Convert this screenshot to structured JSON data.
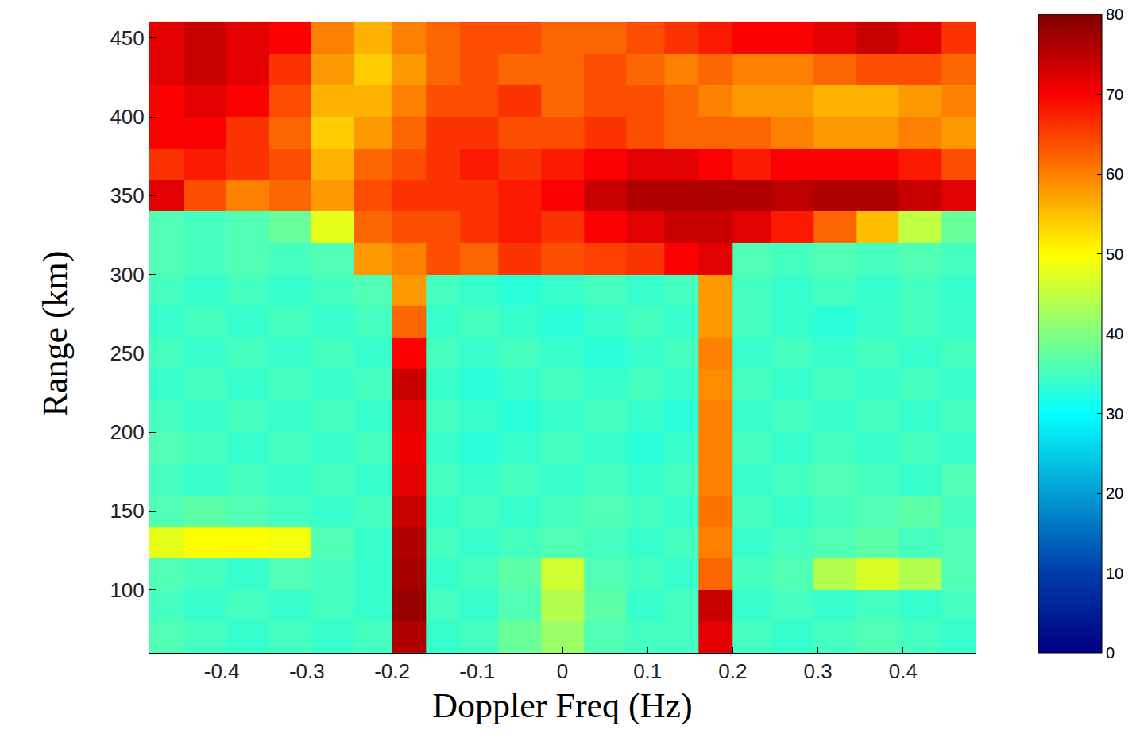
{
  "chart_data": {
    "type": "heatmap",
    "x_label": "Doppler Freq (Hz)",
    "y_label": "Range (km)",
    "color": "Jet",
    "x": [
      -0.47,
      -0.42,
      -0.37,
      -0.32,
      -0.27,
      -0.22,
      -0.18,
      -0.14,
      -0.1,
      -0.05,
      0,
      0.05,
      0.1,
      0.14,
      0.18,
      0.22,
      0.27,
      0.32,
      0.37,
      0.42,
      0.47
    ],
    "y": [
      70,
      90,
      110,
      130,
      150,
      170,
      190,
      210,
      230,
      250,
      270,
      290,
      310,
      330,
      350,
      370,
      390,
      410,
      430,
      450
    ],
    "z": [
      [
        36,
        35,
        34,
        35,
        34,
        35,
        76,
        34,
        35,
        38,
        42,
        36,
        35,
        35,
        72,
        35,
        34,
        35,
        36,
        35,
        34
      ],
      [
        35,
        34,
        35,
        34,
        35,
        34,
        78,
        35,
        34,
        36,
        44,
        37,
        34,
        35,
        74,
        34,
        35,
        34,
        35,
        34,
        35
      ],
      [
        36,
        35,
        34,
        36,
        35,
        34,
        77,
        34,
        35,
        37,
        46,
        36,
        35,
        34,
        62,
        35,
        36,
        44,
        47,
        44,
        36
      ],
      [
        48,
        50,
        50,
        49,
        36,
        34,
        76,
        35,
        34,
        35,
        36,
        35,
        34,
        35,
        60,
        34,
        35,
        36,
        37,
        35,
        36
      ],
      [
        36,
        37,
        36,
        35,
        34,
        35,
        74,
        34,
        35,
        34,
        35,
        36,
        35,
        34,
        61,
        35,
        34,
        35,
        36,
        37,
        35
      ],
      [
        35,
        34,
        35,
        34,
        35,
        34,
        72,
        35,
        34,
        35,
        34,
        35,
        34,
        35,
        60,
        34,
        35,
        36,
        35,
        34,
        36
      ],
      [
        36,
        35,
        34,
        35,
        34,
        35,
        71,
        34,
        33,
        34,
        35,
        34,
        33,
        34,
        60,
        35,
        34,
        35,
        34,
        35,
        34
      ],
      [
        35,
        34,
        35,
        34,
        35,
        34,
        72,
        35,
        34,
        33,
        34,
        35,
        34,
        33,
        60,
        34,
        35,
        34,
        35,
        34,
        35
      ],
      [
        34,
        35,
        34,
        35,
        34,
        35,
        74,
        34,
        33,
        34,
        35,
        34,
        35,
        34,
        59,
        35,
        34,
        35,
        34,
        35,
        34
      ],
      [
        35,
        34,
        35,
        34,
        35,
        34,
        70,
        35,
        34,
        35,
        34,
        33,
        34,
        35,
        60,
        34,
        35,
        34,
        35,
        34,
        35
      ],
      [
        34,
        35,
        34,
        35,
        34,
        35,
        62,
        34,
        35,
        34,
        33,
        34,
        35,
        34,
        58,
        35,
        34,
        33,
        34,
        35,
        34
      ],
      [
        35,
        34,
        35,
        34,
        35,
        36,
        58,
        35,
        34,
        33,
        34,
        35,
        34,
        35,
        58,
        35,
        34,
        35,
        34,
        35,
        34
      ],
      [
        36,
        35,
        36,
        35,
        36,
        58,
        60,
        64,
        62,
        66,
        64,
        65,
        66,
        70,
        72,
        36,
        35,
        36,
        35,
        36,
        35
      ],
      [
        36,
        35,
        36,
        38,
        48,
        62,
        64,
        64,
        66,
        68,
        66,
        70,
        72,
        74,
        74,
        72,
        68,
        62,
        55,
        45,
        38
      ],
      [
        72,
        64,
        60,
        62,
        58,
        64,
        66,
        66,
        66,
        68,
        70,
        74,
        76,
        76,
        76,
        76,
        75,
        76,
        76,
        74,
        72
      ],
      [
        66,
        68,
        66,
        64,
        56,
        62,
        64,
        66,
        68,
        66,
        68,
        70,
        72,
        72,
        70,
        68,
        70,
        70,
        70,
        68,
        64
      ],
      [
        70,
        70,
        66,
        62,
        54,
        58,
        62,
        66,
        66,
        64,
        64,
        66,
        64,
        62,
        62,
        62,
        60,
        58,
        58,
        60,
        58
      ],
      [
        70,
        72,
        70,
        64,
        56,
        56,
        60,
        64,
        64,
        66,
        62,
        64,
        64,
        62,
        60,
        58,
        58,
        56,
        56,
        58,
        60
      ],
      [
        72,
        74,
        72,
        66,
        58,
        54,
        58,
        62,
        64,
        62,
        62,
        64,
        62,
        60,
        62,
        60,
        60,
        62,
        64,
        64,
        62
      ],
      [
        72,
        74,
        72,
        70,
        60,
        56,
        60,
        62,
        64,
        64,
        62,
        62,
        64,
        66,
        68,
        70,
        70,
        72,
        74,
        72,
        66
      ]
    ],
    "xlim": [
      -0.485,
      0.485
    ],
    "ylim": [
      60,
      465
    ],
    "xticks": [
      -0.4,
      -0.3,
      -0.2,
      -0.1,
      0,
      0.1,
      0.2,
      0.3,
      0.4
    ],
    "yticks": [
      100,
      150,
      200,
      250,
      300,
      350,
      400,
      450
    ],
    "colorbar_range": [
      0,
      80
    ],
    "colorbar_ticks": [
      0,
      10,
      20,
      30,
      40,
      50,
      60,
      70,
      80
    ]
  }
}
